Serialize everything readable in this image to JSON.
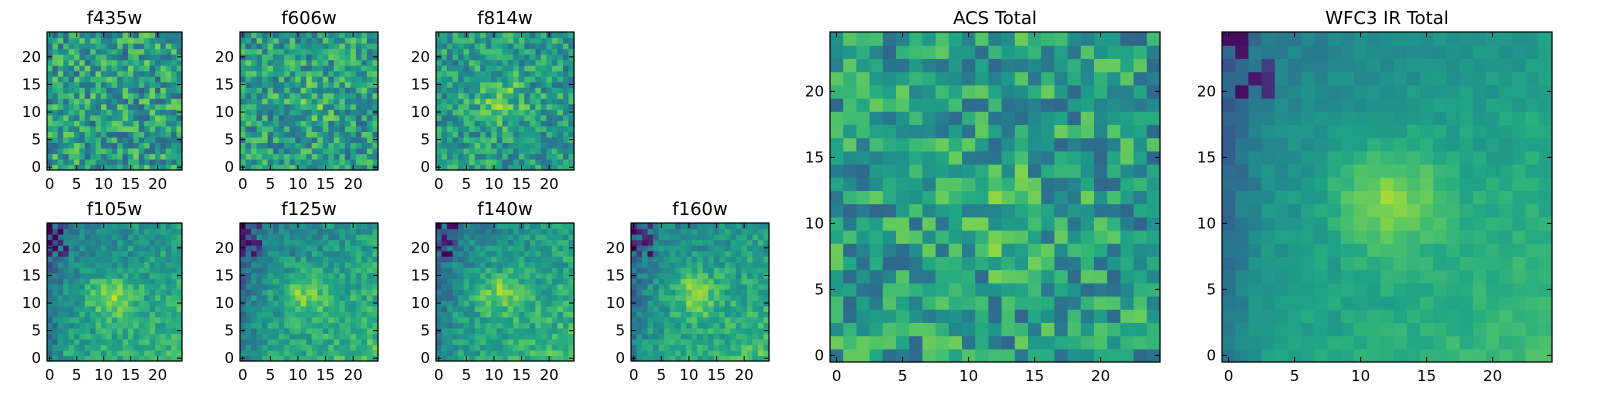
{
  "chart_data": [
    {
      "type": "heatmap",
      "title": "f435w",
      "xticks": [
        "0",
        "5",
        "10",
        "15",
        "20"
      ],
      "yticks": [
        "0",
        "5",
        "10",
        "15",
        "20"
      ],
      "xlim": [
        0,
        25
      ],
      "ylim": [
        0,
        25
      ],
      "colormap": "viridis",
      "features": {
        "blob_center": [
          12,
          11
        ],
        "blob_strength": 0.05,
        "noise": 0.5
      }
    },
    {
      "type": "heatmap",
      "title": "f606w",
      "xticks": [
        "0",
        "5",
        "10",
        "15",
        "20"
      ],
      "yticks": [
        "0",
        "5",
        "10",
        "15",
        "20"
      ],
      "xlim": [
        0,
        25
      ],
      "ylim": [
        0,
        25
      ],
      "colormap": "viridis",
      "features": {
        "blob_center": [
          12,
          12
        ],
        "blob_strength": 0.25,
        "noise": 0.45
      }
    },
    {
      "type": "heatmap",
      "title": "f814w",
      "xticks": [
        "0",
        "5",
        "10",
        "15",
        "20"
      ],
      "yticks": [
        "0",
        "5",
        "10",
        "15",
        "20"
      ],
      "xlim": [
        0,
        25
      ],
      "ylim": [
        0,
        25
      ],
      "colormap": "viridis",
      "features": {
        "blob_center": [
          11,
          12
        ],
        "blob_strength": 0.4,
        "noise": 0.4
      }
    },
    {
      "type": "heatmap",
      "title": "f105w",
      "xticks": [
        "0",
        "5",
        "10",
        "15",
        "20"
      ],
      "yticks": [
        "0",
        "5",
        "10",
        "15",
        "20"
      ],
      "xlim": [
        0,
        25
      ],
      "ylim": [
        0,
        25
      ],
      "colormap": "viridis",
      "features": {
        "blob_center": [
          11,
          11
        ],
        "blob_strength": 0.55,
        "noise": 0.25
      }
    },
    {
      "type": "heatmap",
      "title": "f125w",
      "xticks": [
        "0",
        "5",
        "10",
        "15",
        "20"
      ],
      "yticks": [
        "0",
        "5",
        "10",
        "15",
        "20"
      ],
      "xlim": [
        0,
        25
      ],
      "ylim": [
        0,
        25
      ],
      "colormap": "viridis",
      "features": {
        "blob_center": [
          11,
          12
        ],
        "blob_strength": 0.55,
        "noise": 0.25
      }
    },
    {
      "type": "heatmap",
      "title": "f140w",
      "xticks": [
        "0",
        "5",
        "10",
        "15",
        "20"
      ],
      "yticks": [
        "0",
        "5",
        "10",
        "15",
        "20"
      ],
      "xlim": [
        0,
        25
      ],
      "ylim": [
        0,
        25
      ],
      "colormap": "viridis",
      "features": {
        "blob_center": [
          11,
          12
        ],
        "blob_strength": 0.55,
        "noise": 0.25
      }
    },
    {
      "type": "heatmap",
      "title": "f160w",
      "xticks": [
        "0",
        "5",
        "10",
        "15",
        "20"
      ],
      "yticks": [
        "0",
        "5",
        "10",
        "15",
        "20"
      ],
      "xlim": [
        0,
        25
      ],
      "ylim": [
        0,
        25
      ],
      "colormap": "viridis",
      "features": {
        "blob_center": [
          11,
          12
        ],
        "blob_strength": 0.55,
        "noise": 0.25
      }
    },
    {
      "type": "heatmap",
      "title": "ACS Total",
      "xticks": [
        "0",
        "5",
        "10",
        "15",
        "20"
      ],
      "yticks": [
        "0",
        "5",
        "10",
        "15",
        "20"
      ],
      "xlim": [
        0,
        25
      ],
      "ylim": [
        0,
        25
      ],
      "colormap": "viridis",
      "features": {
        "blob_center": [
          12,
          11
        ],
        "blob_strength": 0.25,
        "noise": 0.45
      }
    },
    {
      "type": "heatmap",
      "title": "WFC3 IR Total",
      "xticks": [
        "0",
        "5",
        "10",
        "15",
        "20"
      ],
      "yticks": [
        "0",
        "5",
        "10",
        "15",
        "20"
      ],
      "xlim": [
        0,
        25
      ],
      "ylim": [
        0,
        25
      ],
      "colormap": "viridis",
      "features": {
        "blob_center": [
          12,
          12
        ],
        "blob_strength": 0.6,
        "noise": 0.1
      }
    }
  ]
}
